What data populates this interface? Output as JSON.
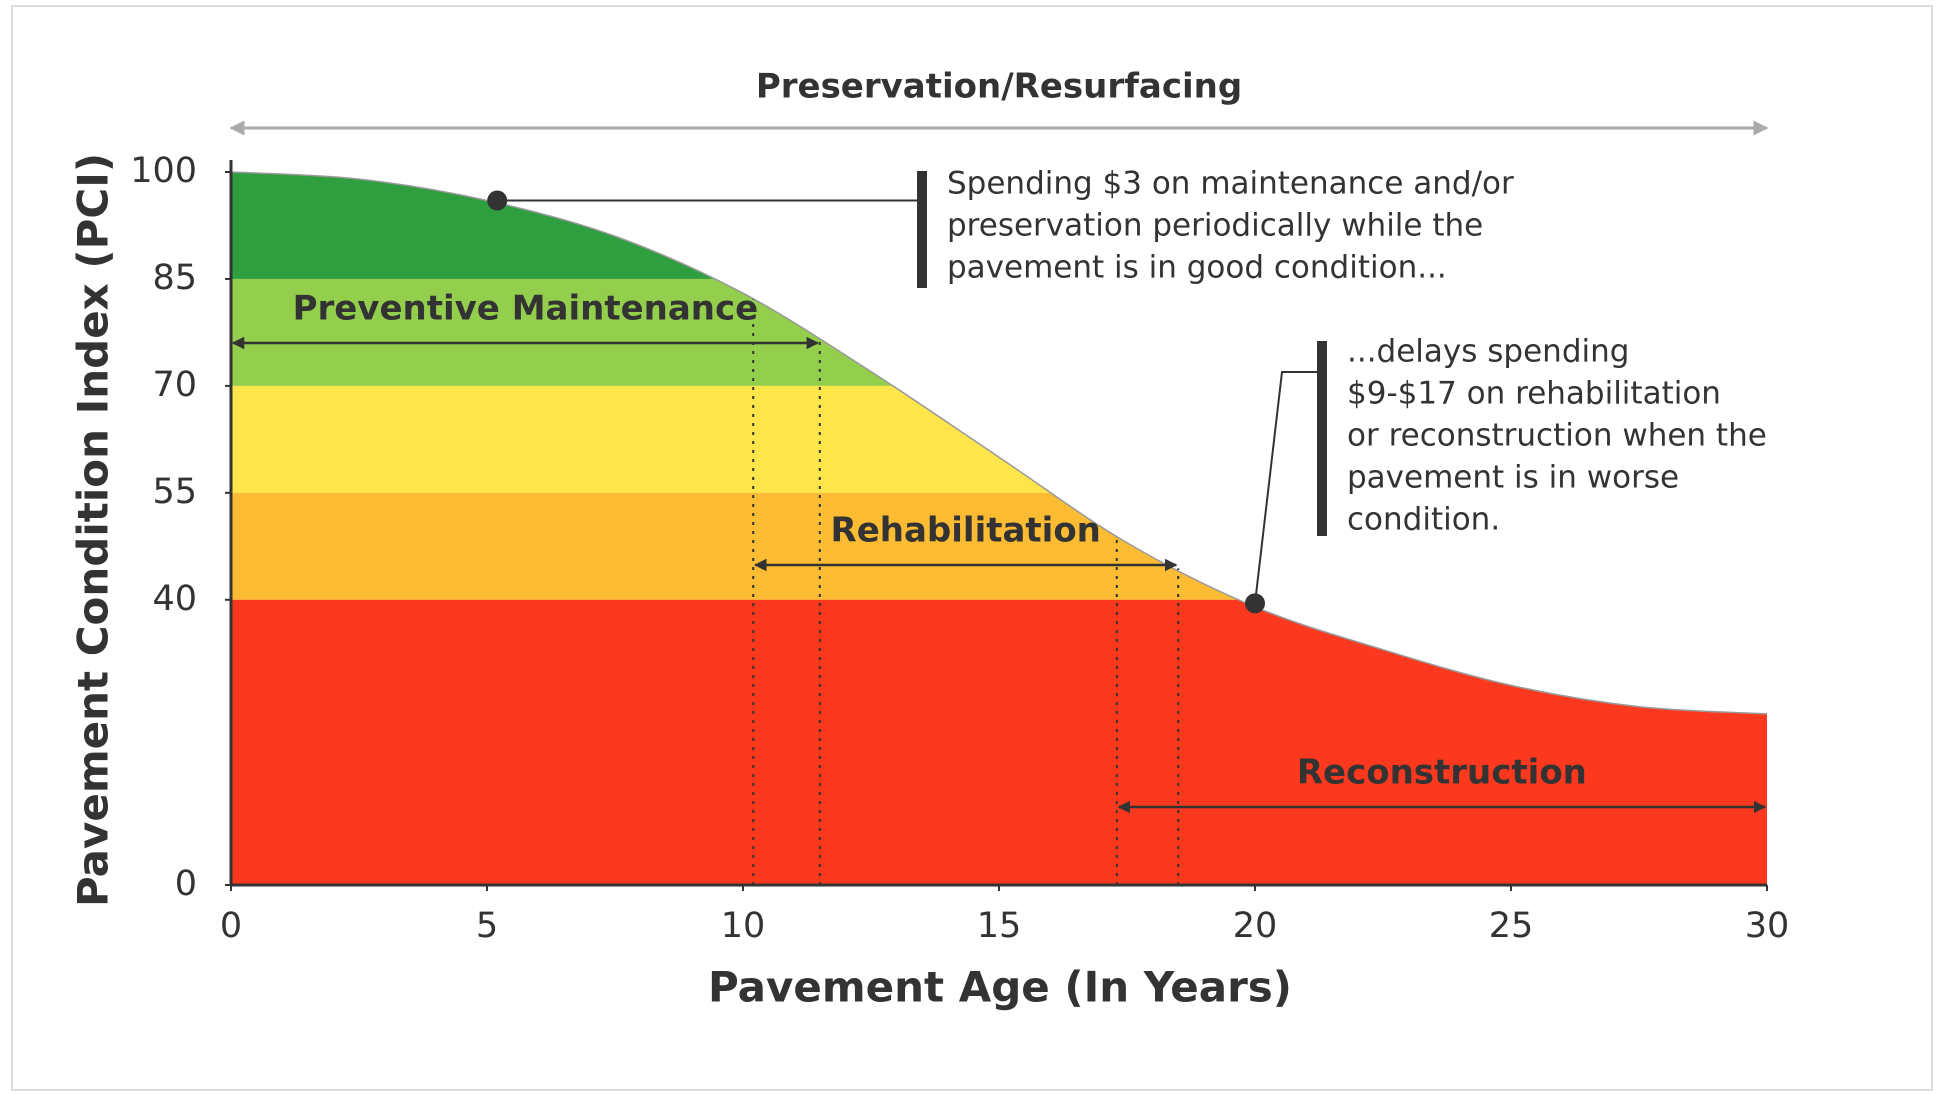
{
  "chart_data": {
    "type": "area",
    "xlabel": "Pavement Age (In Years)",
    "ylabel": "Pavement Condition Index (PCI)",
    "x": [
      0,
      2.5,
      5,
      7.5,
      10,
      12.5,
      15,
      17.5,
      20,
      22.5,
      25,
      27.5,
      30
    ],
    "values": [
      100,
      99,
      96,
      91,
      83,
      72,
      60,
      48,
      39,
      33,
      28,
      25,
      24
    ],
    "xlim": [
      0,
      30
    ],
    "ylim": [
      0,
      100
    ],
    "xticks": [
      0,
      5,
      10,
      15,
      20,
      25,
      30
    ],
    "yticks": [
      0,
      40,
      55,
      70,
      85,
      100
    ],
    "bands": [
      {
        "from": 85,
        "to": 100,
        "color": "#2f9e3f"
      },
      {
        "from": 70,
        "to": 85,
        "color": "#93cf4c"
      },
      {
        "from": 55,
        "to": 70,
        "color": "#fde54a"
      },
      {
        "from": 40,
        "to": 55,
        "color": "#fbbb33"
      },
      {
        "from": 0,
        "to": 40,
        "color": "#fc391f"
      }
    ],
    "top_range": {
      "label": "Preservation/Resurfacing",
      "start": 0,
      "end": 30
    },
    "ranges": [
      {
        "label": "Preventive Maintenance",
        "start": 0,
        "end": 11.5
      },
      {
        "label": "Rehabilitation",
        "start": 10.2,
        "end": 18.5
      },
      {
        "label": "Reconstruction",
        "start": 17.3,
        "end": 30
      }
    ],
    "callouts": [
      {
        "x": 5.2,
        "y": 96,
        "lines": [
          "Spending $3 on maintenance and/or",
          "preservation periodically while the",
          "pavement is in good condition..."
        ]
      },
      {
        "x": 20,
        "y": 39.5,
        "lines": [
          "...delays spending",
          "$9-$17 on rehabilitation",
          "or reconstruction when the",
          "pavement is in worse",
          "condition."
        ]
      }
    ]
  }
}
